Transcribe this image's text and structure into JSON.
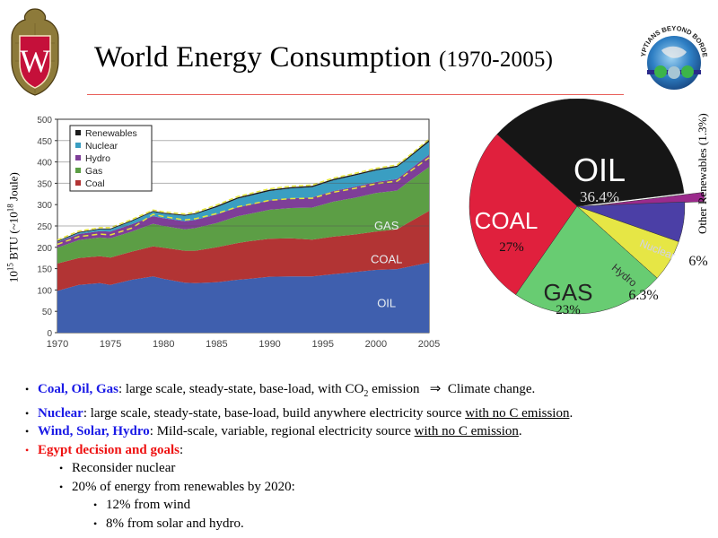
{
  "slide": {
    "title": "World Energy Consumption",
    "title_years": "(1970-2005)",
    "logos": [
      "university-crest-W",
      "egyptians-beyond-borders"
    ],
    "logo_text": "EGYPTIANS BEYOND BORDERS",
    "crest_letter": "W"
  },
  "bullets": {
    "b1": {
      "head": "Coal, Oil, Gas",
      "text": ": large scale, steady-state, base-load, with CO",
      "sub": "2",
      "text2": " emission",
      "arrow": "⇒",
      "tail": " Climate change."
    },
    "b2": {
      "head": "Nuclear",
      "text": ": large scale, steady-state, base-load, build anywhere electricity  source ",
      "u": "with no C emission",
      "tail": "."
    },
    "b3": {
      "head": "Wind, Solar, Hydro",
      "text": ": Mild-scale, variable, regional electricity  source ",
      "u": "with no C emission",
      "tail": "."
    },
    "b4": {
      "head": "Egypt decision and goals",
      "tail": ":"
    },
    "s1": "Reconsider nuclear",
    "s2": "20% of energy from renewables by 2020:",
    "s2a": "12% from wind",
    "s2b": "8% from solar and hydro.",
    "bullet_glyph": "•"
  },
  "colors": {
    "title_rule": "#e8605a",
    "blue_head": "#1a1ae6",
    "red_head": "#ee1111"
  },
  "chart_data": [
    {
      "type": "area",
      "title": "",
      "xlabel": "",
      "ylabel": "10^15 BTU (~10^18 Joule)",
      "ylabel_parts": {
        "base": "10",
        "exp1": "15",
        "mid": " BTU (~10",
        "exp2": "18",
        "end": " Joule)"
      },
      "xlim": [
        1970,
        2005
      ],
      "ylim": [
        0,
        500
      ],
      "x_ticks": [
        "1970",
        "1975",
        "1980",
        "1985",
        "1990",
        "1995",
        "2000",
        "2005"
      ],
      "y_ticks": [
        "0",
        "50",
        "100",
        "150",
        "200",
        "250",
        "300",
        "350",
        "400",
        "450",
        "500"
      ],
      "legend": [
        "Renewables",
        "Nuclear",
        "Hydro",
        "Gas",
        "Coal"
      ],
      "legend_position": "top-left",
      "annotations": [
        "GAS",
        "COAL",
        "OIL"
      ],
      "x": [
        1970,
        1972,
        1974,
        1975,
        1977,
        1979,
        1980,
        1982,
        1983,
        1985,
        1987,
        1988,
        1990,
        1992,
        1994,
        1996,
        1998,
        2000,
        2002,
        2003,
        2005
      ],
      "series": [
        {
          "name": "Oil",
          "color": "#3f5fae",
          "values": [
            98,
            112,
            116,
            112,
            124,
            132,
            126,
            117,
            116,
            118,
            124,
            126,
            131,
            132,
            132,
            137,
            142,
            147,
            149,
            154,
            164
          ]
        },
        {
          "name": "Coal",
          "color": "#b23434",
          "values": [
            64,
            63,
            63,
            64,
            66,
            70,
            73,
            75,
            76,
            82,
            86,
            88,
            89,
            89,
            86,
            88,
            88,
            90,
            93,
            103,
            121
          ]
        },
        {
          "name": "Gas",
          "color": "#5c9e45",
          "values": [
            37,
            42,
            44,
            45,
            47,
            53,
            51,
            50,
            53,
            57,
            63,
            64,
            68,
            71,
            75,
            82,
            86,
            90,
            91,
            95,
            103
          ]
        },
        {
          "name": "Hydro",
          "color": "#7e3e98",
          "values": [
            13,
            14,
            15,
            16,
            17,
            18,
            18,
            19,
            19,
            20,
            21,
            21,
            22,
            23,
            24,
            25,
            26,
            26,
            27,
            27,
            29
          ]
        },
        {
          "name": "Nuclear",
          "color": "#3a9ec2",
          "values": [
            1,
            3,
            4,
            5,
            7,
            10,
            11,
            13,
            14,
            17,
            20,
            21,
            22,
            23,
            24,
            25,
            26,
            27,
            28,
            28,
            30
          ]
        },
        {
          "name": "Renewables",
          "color": "#1c1c1c",
          "values": [
            2,
            2,
            2,
            2,
            2,
            2,
            2,
            2,
            2,
            3,
            3,
            3,
            3,
            3,
            3,
            3,
            3,
            3,
            3,
            3,
            4
          ]
        }
      ]
    },
    {
      "type": "pie",
      "title": "",
      "categories": [
        "OIL",
        "Other Renewables",
        "Nuclear",
        "Hydro",
        "GAS",
        "COAL"
      ],
      "values": [
        36.4,
        1.3,
        6,
        6.3,
        23,
        27
      ],
      "labels": [
        "36.4%",
        "(1.3%)",
        "6%",
        "6.3%",
        "23%",
        "27%"
      ],
      "colors": [
        "#161616",
        "#9b2a8c",
        "#4b3fa6",
        "#e6e645",
        "#68cc72",
        "#e0203d"
      ],
      "other_label": "Other Renewables (1.3%)"
    }
  ]
}
